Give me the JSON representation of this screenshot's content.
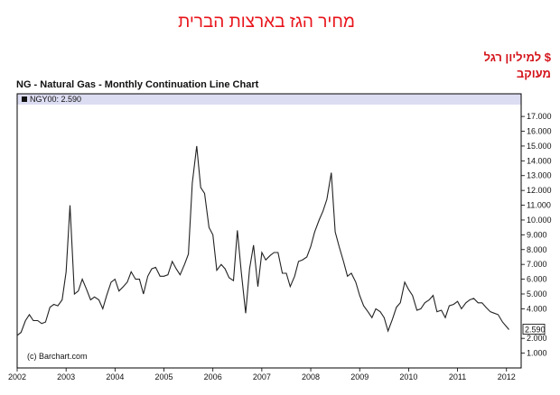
{
  "header": {
    "hebrew_title": "מחיר הגז בארצות הברית",
    "unit_line1": "$ למיליון רגל",
    "unit_line2": "מעוקב"
  },
  "chart_data": {
    "type": "line",
    "title": "NG - Natural Gas - Monthly Continuation Line Chart",
    "legend": {
      "symbol": "NGY00",
      "last_value": "2.590",
      "placement": "top-left"
    },
    "last_value_label": "2.590",
    "copyright": "(c) Barchart.com",
    "x_range": [
      2002.0,
      2012.3
    ],
    "y_range": [
      0,
      17.8
    ],
    "x_ticks": [
      {
        "value": 2002,
        "label": "2002"
      },
      {
        "value": 2003,
        "label": "2003"
      },
      {
        "value": 2004,
        "label": "2004"
      },
      {
        "value": 2005,
        "label": "2005"
      },
      {
        "value": 2006,
        "label": "2006"
      },
      {
        "value": 2007,
        "label": "2007"
      },
      {
        "value": 2008,
        "label": "2008"
      },
      {
        "value": 2009,
        "label": "2009"
      },
      {
        "value": 2010,
        "label": "2010"
      },
      {
        "value": 2011,
        "label": "2011"
      },
      {
        "value": 2012,
        "label": "2012"
      }
    ],
    "y_ticks": [
      {
        "value": 1,
        "label": "1.000"
      },
      {
        "value": 2,
        "label": "2.000"
      },
      {
        "value": 4,
        "label": "4.000"
      },
      {
        "value": 5,
        "label": "5.000"
      },
      {
        "value": 6,
        "label": "6.000"
      },
      {
        "value": 7,
        "label": "7.000"
      },
      {
        "value": 8,
        "label": "8.000"
      },
      {
        "value": 9,
        "label": "9.000"
      },
      {
        "value": 10,
        "label": "10.000"
      },
      {
        "value": 11,
        "label": "11.000"
      },
      {
        "value": 12,
        "label": "12.000"
      },
      {
        "value": 13,
        "label": "13.000"
      },
      {
        "value": 14,
        "label": "14.000"
      },
      {
        "value": 15,
        "label": "15.000"
      },
      {
        "value": 16,
        "label": "16.000"
      },
      {
        "value": 17,
        "label": "17.000"
      }
    ],
    "grid": false,
    "colors": {
      "line": "#222222",
      "legend_band": "#dcdcf2",
      "frame": "#000000"
    },
    "series": [
      {
        "name": "NGY00",
        "points": [
          [
            2002.0,
            2.2
          ],
          [
            2002.08,
            2.4
          ],
          [
            2002.17,
            3.2
          ],
          [
            2002.25,
            3.6
          ],
          [
            2002.33,
            3.2
          ],
          [
            2002.42,
            3.2
          ],
          [
            2002.5,
            3.0
          ],
          [
            2002.58,
            3.1
          ],
          [
            2002.67,
            4.1
          ],
          [
            2002.75,
            4.3
          ],
          [
            2002.83,
            4.2
          ],
          [
            2002.92,
            4.6
          ],
          [
            2003.0,
            6.5
          ],
          [
            2003.08,
            11.0
          ],
          [
            2003.17,
            5.0
          ],
          [
            2003.25,
            5.2
          ],
          [
            2003.33,
            6.0
          ],
          [
            2003.42,
            5.3
          ],
          [
            2003.5,
            4.6
          ],
          [
            2003.58,
            4.8
          ],
          [
            2003.67,
            4.6
          ],
          [
            2003.75,
            4.0
          ],
          [
            2003.83,
            4.9
          ],
          [
            2003.92,
            5.8
          ],
          [
            2004.0,
            6.0
          ],
          [
            2004.08,
            5.2
          ],
          [
            2004.17,
            5.5
          ],
          [
            2004.25,
            5.8
          ],
          [
            2004.33,
            6.5
          ],
          [
            2004.42,
            6.0
          ],
          [
            2004.5,
            6.0
          ],
          [
            2004.58,
            5.0
          ],
          [
            2004.67,
            6.2
          ],
          [
            2004.75,
            6.7
          ],
          [
            2004.83,
            6.8
          ],
          [
            2004.92,
            6.2
          ],
          [
            2005.0,
            6.2
          ],
          [
            2005.08,
            6.3
          ],
          [
            2005.17,
            7.2
          ],
          [
            2005.25,
            6.7
          ],
          [
            2005.33,
            6.3
          ],
          [
            2005.42,
            7.0
          ],
          [
            2005.5,
            7.7
          ],
          [
            2005.58,
            12.5
          ],
          [
            2005.67,
            15.0
          ],
          [
            2005.75,
            12.2
          ],
          [
            2005.83,
            11.8
          ],
          [
            2005.92,
            9.5
          ],
          [
            2006.0,
            9.0
          ],
          [
            2006.08,
            6.6
          ],
          [
            2006.17,
            7.0
          ],
          [
            2006.25,
            6.7
          ],
          [
            2006.33,
            6.1
          ],
          [
            2006.42,
            5.9
          ],
          [
            2006.5,
            9.3
          ],
          [
            2006.58,
            6.5
          ],
          [
            2006.67,
            3.7
          ],
          [
            2006.75,
            6.7
          ],
          [
            2006.83,
            8.3
          ],
          [
            2006.92,
            5.5
          ],
          [
            2007.0,
            7.8
          ],
          [
            2007.08,
            7.3
          ],
          [
            2007.17,
            7.6
          ],
          [
            2007.25,
            7.8
          ],
          [
            2007.33,
            7.8
          ],
          [
            2007.42,
            6.4
          ],
          [
            2007.5,
            6.4
          ],
          [
            2007.58,
            5.5
          ],
          [
            2007.67,
            6.2
          ],
          [
            2007.75,
            7.2
          ],
          [
            2007.83,
            7.3
          ],
          [
            2007.92,
            7.5
          ],
          [
            2008.0,
            8.2
          ],
          [
            2008.08,
            9.2
          ],
          [
            2008.17,
            10.0
          ],
          [
            2008.25,
            10.6
          ],
          [
            2008.33,
            11.4
          ],
          [
            2008.42,
            13.2
          ],
          [
            2008.5,
            9.2
          ],
          [
            2008.58,
            8.2
          ],
          [
            2008.67,
            7.2
          ],
          [
            2008.75,
            6.2
          ],
          [
            2008.83,
            6.4
          ],
          [
            2008.92,
            5.8
          ],
          [
            2009.0,
            4.9
          ],
          [
            2009.08,
            4.2
          ],
          [
            2009.17,
            3.8
          ],
          [
            2009.25,
            3.4
          ],
          [
            2009.33,
            4.0
          ],
          [
            2009.42,
            3.8
          ],
          [
            2009.5,
            3.4
          ],
          [
            2009.58,
            2.5
          ],
          [
            2009.67,
            3.3
          ],
          [
            2009.75,
            4.1
          ],
          [
            2009.83,
            4.4
          ],
          [
            2009.92,
            5.8
          ],
          [
            2010.0,
            5.3
          ],
          [
            2010.08,
            4.9
          ],
          [
            2010.17,
            3.9
          ],
          [
            2010.25,
            4.0
          ],
          [
            2010.33,
            4.4
          ],
          [
            2010.42,
            4.6
          ],
          [
            2010.5,
            4.9
          ],
          [
            2010.58,
            3.8
          ],
          [
            2010.67,
            3.9
          ],
          [
            2010.75,
            3.4
          ],
          [
            2010.83,
            4.2
          ],
          [
            2010.92,
            4.3
          ],
          [
            2011.0,
            4.5
          ],
          [
            2011.08,
            4.0
          ],
          [
            2011.17,
            4.4
          ],
          [
            2011.25,
            4.6
          ],
          [
            2011.33,
            4.7
          ],
          [
            2011.42,
            4.4
          ],
          [
            2011.5,
            4.4
          ],
          [
            2011.58,
            4.1
          ],
          [
            2011.67,
            3.8
          ],
          [
            2011.75,
            3.7
          ],
          [
            2011.83,
            3.6
          ],
          [
            2011.92,
            3.1
          ],
          [
            2012.0,
            2.8
          ],
          [
            2012.05,
            2.59
          ]
        ]
      }
    ]
  }
}
